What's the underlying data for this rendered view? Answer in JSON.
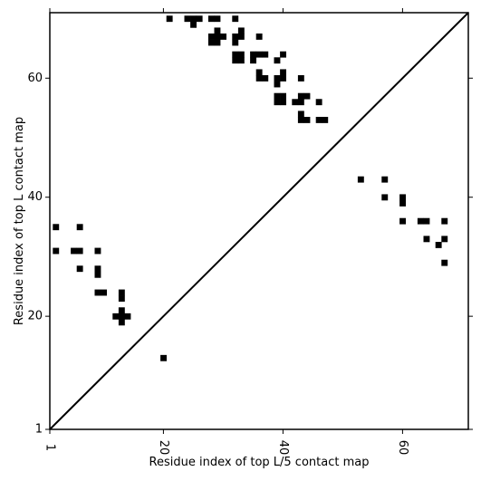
{
  "chart_data": {
    "type": "heatmap",
    "xlabel": "Residue index of top L/5 contact map",
    "ylabel": "Residue index of top L contact map",
    "xlim": [
      1,
      71
    ],
    "ylim": [
      1,
      71
    ],
    "x_ticks": [
      1,
      20,
      40,
      60
    ],
    "y_ticks": [
      1,
      20,
      40,
      60
    ],
    "x_tick_labels": [
      "1",
      "20",
      "40",
      "60"
    ],
    "y_tick_labels": [
      "1",
      "20",
      "40",
      "60"
    ],
    "diagonal": true,
    "grid": false,
    "legend": "none",
    "cell_color": "#000000",
    "upper_triangle_contacts": [
      [
        21,
        70
      ],
      [
        24,
        70
      ],
      [
        25,
        70
      ],
      [
        26,
        70
      ],
      [
        28,
        70
      ],
      [
        29,
        70
      ],
      [
        32,
        70
      ],
      [
        25,
        69
      ],
      [
        29,
        68
      ],
      [
        33,
        68
      ],
      [
        29,
        67
      ],
      [
        28,
        67
      ],
      [
        29,
        67
      ],
      [
        30,
        67
      ],
      [
        32,
        67
      ],
      [
        33,
        67
      ],
      [
        36,
        67
      ],
      [
        28,
        66
      ],
      [
        29,
        66
      ],
      [
        32,
        66
      ],
      [
        32,
        64
      ],
      [
        33,
        64
      ],
      [
        35,
        64
      ],
      [
        36,
        64
      ],
      [
        37,
        64
      ],
      [
        40,
        64
      ],
      [
        32,
        63
      ],
      [
        33,
        63
      ],
      [
        35,
        63
      ],
      [
        39,
        63
      ],
      [
        36,
        61
      ],
      [
        40,
        61
      ],
      [
        36,
        60
      ],
      [
        37,
        60
      ],
      [
        39,
        60
      ],
      [
        40,
        60
      ],
      [
        43,
        60
      ],
      [
        39,
        59
      ],
      [
        39,
        57
      ],
      [
        40,
        57
      ],
      [
        43,
        57
      ],
      [
        44,
        57
      ],
      [
        39,
        56
      ],
      [
        40,
        56
      ],
      [
        42,
        56
      ],
      [
        43,
        56
      ],
      [
        46,
        56
      ],
      [
        43,
        54
      ],
      [
        43,
        53
      ],
      [
        44,
        53
      ],
      [
        46,
        53
      ],
      [
        47,
        53
      ]
    ],
    "lower_triangle_contacts": [
      [
        53,
        43
      ],
      [
        57,
        43
      ],
      [
        57,
        40
      ],
      [
        60,
        40
      ],
      [
        60,
        39
      ],
      [
        60,
        36
      ],
      [
        63,
        36
      ],
      [
        64,
        36
      ],
      [
        67,
        36
      ],
      [
        64,
        33
      ],
      [
        67,
        33
      ],
      [
        66,
        32
      ],
      [
        67,
        29
      ],
      [
        2,
        35
      ],
      [
        6,
        35
      ],
      [
        2,
        31
      ],
      [
        5,
        31
      ],
      [
        6,
        31
      ],
      [
        9,
        31
      ],
      [
        6,
        28
      ],
      [
        9,
        28
      ],
      [
        9,
        27
      ],
      [
        9,
        24
      ],
      [
        10,
        24
      ],
      [
        13,
        24
      ],
      [
        13,
        23
      ],
      [
        13,
        21
      ],
      [
        12,
        20
      ],
      [
        13,
        20
      ],
      [
        14,
        20
      ],
      [
        13,
        19
      ],
      [
        20,
        13
      ]
    ]
  }
}
